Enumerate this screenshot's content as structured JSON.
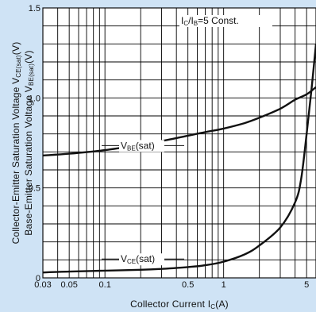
{
  "chart_data": {
    "type": "line",
    "x_scale": "log",
    "y_scale": "linear",
    "xlim": [
      0.03,
      6
    ],
    "ylim": [
      0,
      1.5
    ],
    "grid": true,
    "x_major_ticks": [
      0.03,
      0.05,
      0.1,
      0.5,
      1,
      5
    ],
    "x_tick_labels": [
      "0.03",
      "0.05",
      "0.1",
      "0.5",
      "1",
      "5"
    ],
    "y_ticks": [
      0,
      0.5,
      1.0,
      1.5
    ],
    "y_tick_labels": [
      "0",
      "0.5",
      "1.0",
      "1.5"
    ],
    "xlabel": {
      "main": "Collector Current I",
      "sub": "C",
      "tail": "(A)"
    },
    "ylabel_line1": {
      "main": "Collector-Emitter Saturation Voltage V",
      "sub": "CE(sat)",
      "tail": "(V)"
    },
    "ylabel_line2": {
      "main": "Base-Emitter Saturation Voltage V",
      "sub": "BE(sat)",
      "tail": "(V)"
    },
    "condition": {
      "p1": "I",
      "s1": "C",
      "p2": "/I",
      "s2": "B",
      "p3": "=5 Const."
    },
    "series": [
      {
        "name": "VBE(sat)",
        "label": {
          "main": "V",
          "sub": "BE",
          "tail": "(sat)"
        },
        "points": [
          [
            0.03,
            0.68
          ],
          [
            0.05,
            0.69
          ],
          [
            0.1,
            0.71
          ],
          [
            0.2,
            0.74
          ],
          [
            0.3,
            0.76
          ],
          [
            0.5,
            0.79
          ],
          [
            0.7,
            0.81
          ],
          [
            1,
            0.83
          ],
          [
            1.5,
            0.86
          ],
          [
            2,
            0.89
          ],
          [
            3,
            0.94
          ],
          [
            4,
            0.99
          ],
          [
            5,
            1.02
          ],
          [
            6,
            1.06
          ]
        ]
      },
      {
        "name": "VCE(sat)",
        "label": {
          "main": "V",
          "sub": "CE",
          "tail": "(sat)"
        },
        "points": [
          [
            0.03,
            0.03
          ],
          [
            0.05,
            0.035
          ],
          [
            0.1,
            0.04
          ],
          [
            0.2,
            0.045
          ],
          [
            0.3,
            0.05
          ],
          [
            0.5,
            0.06
          ],
          [
            0.7,
            0.07
          ],
          [
            1,
            0.09
          ],
          [
            1.5,
            0.13
          ],
          [
            2,
            0.18
          ],
          [
            3,
            0.28
          ],
          [
            4,
            0.42
          ],
          [
            4.5,
            0.55
          ],
          [
            5,
            0.8
          ],
          [
            5.5,
            1.05
          ],
          [
            6,
            1.3
          ]
        ]
      }
    ]
  }
}
